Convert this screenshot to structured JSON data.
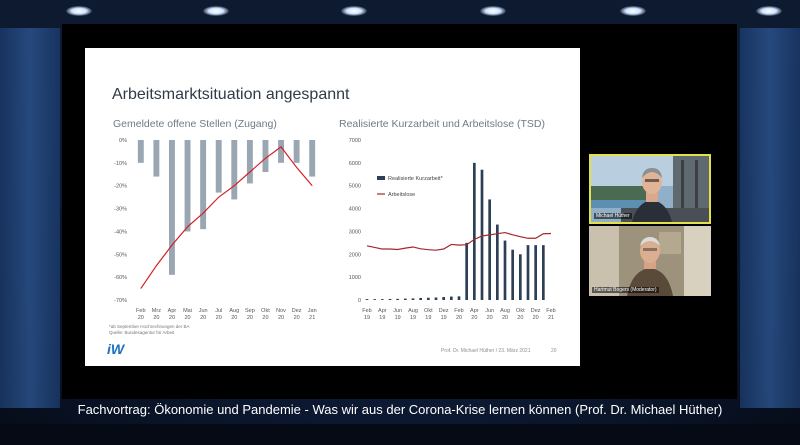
{
  "slide": {
    "title": "Arbeitsmarktsituation angespannt",
    "left_subtitle": "Gemeldete offene Stellen (Zugang)",
    "right_subtitle": "Realisierte Kurzarbeit und Arbeitslose (TSD)",
    "footnote_line1": "*ab September Hochrechnungen der BA",
    "footnote_line2": "Quelle: Bundesagentur für Arbeit",
    "logo": "iW",
    "footer_text": "Prof. Dr. Michael Hüther / 23. März 2021",
    "page_number": "20"
  },
  "chart_data": [
    {
      "type": "bar",
      "title": "Gemeldete offene Stellen (Zugang)",
      "categories": [
        "Feb 20",
        "Mrz 20",
        "Apr 20",
        "Mai 20",
        "Jun 20",
        "Jul 20",
        "Aug 20",
        "Sep 20",
        "Okt 20",
        "Nov 20",
        "Dez 20",
        "Jan 21"
      ],
      "category_top": [
        "Feb",
        "Mrz",
        "Apr",
        "Mai",
        "Jun",
        "Jul",
        "Aug",
        "Sep",
        "Okt",
        "Nov",
        "Dez",
        "Jan"
      ],
      "category_bottom": [
        "20",
        "20",
        "20",
        "20",
        "20",
        "20",
        "20",
        "20",
        "20",
        "20",
        "20",
        "21"
      ],
      "values": [
        -10,
        -16,
        -59,
        -40,
        -39,
        -23,
        -26,
        -19,
        -14,
        -10,
        -10,
        -16
      ],
      "line": [
        -65,
        -55,
        -46,
        -38,
        -32,
        -25,
        -20,
        -14,
        -8,
        -3,
        -12,
        -20
      ],
      "yticks": [
        "0%",
        "-10%",
        "-20%",
        "-30%",
        "-40%",
        "-50%",
        "-60%",
        "-70%"
      ],
      "ylim": [
        -70,
        0
      ],
      "colors": {
        "bars": "#9aa7b3",
        "line": "#d21f26"
      }
    },
    {
      "type": "bar",
      "title": "Realisierte Kurzarbeit und Arbeitslose (TSD)",
      "categories": [
        "Feb 19",
        "Mrz 19",
        "Apr 19",
        "Mai 19",
        "Jun 19",
        "Jul 19",
        "Aug 19",
        "Sep 19",
        "Okt 19",
        "Nov 19",
        "Dez 19",
        "Jan 20",
        "Feb 20",
        "Mrz 20",
        "Apr 20",
        "Mai 20",
        "Jun 20",
        "Jul 20",
        "Aug 20",
        "Sep 20",
        "Okt 20",
        "Nov 20",
        "Dez 20",
        "Jan 21",
        "Feb 21"
      ],
      "month_labels_top": [
        "Feb",
        "Apr",
        "Jun",
        "Aug",
        "Okt",
        "Dez",
        "Feb",
        "Apr",
        "Jun",
        "Aug",
        "Okt",
        "Dez",
        "Feb"
      ],
      "month_labels_bottom": [
        "19",
        "19",
        "19",
        "19",
        "19",
        "19",
        "20",
        "20",
        "20",
        "20",
        "20",
        "20",
        "21"
      ],
      "series": [
        {
          "name": "Realisierte Kurzarbeit*",
          "values": [
            40,
            35,
            38,
            45,
            50,
            60,
            70,
            90,
            100,
            110,
            130,
            150,
            160,
            2500,
            6000,
            5700,
            4400,
            3300,
            2600,
            2200,
            2000,
            2400,
            2400,
            2400,
            null
          ]
        },
        {
          "name": "Arbeitslose",
          "values": [
            2370,
            2300,
            2230,
            2230,
            2210,
            2270,
            2320,
            2240,
            2200,
            2180,
            2230,
            2430,
            2400,
            2420,
            2650,
            2800,
            2850,
            2900,
            2950,
            2850,
            2770,
            2700,
            2700,
            2900,
            2910
          ]
        }
      ],
      "yticks": [
        "7000",
        "6000",
        "5000",
        "4000",
        "3000",
        "2000",
        "1000",
        "0"
      ],
      "ylim": [
        0,
        7000
      ],
      "colors": {
        "bars": "#2c3f55",
        "line": "#a3282b"
      }
    }
  ],
  "video": {
    "speaker_label": "Michael Hüther",
    "moderator_label": "Hartmut Bogers (Moderator)"
  },
  "caption": "Fachvortrag: Ökonomie und Pandemie - Was wir aus der Corona-Krise lernen können (Prof. Dr. Michael Hüther)"
}
